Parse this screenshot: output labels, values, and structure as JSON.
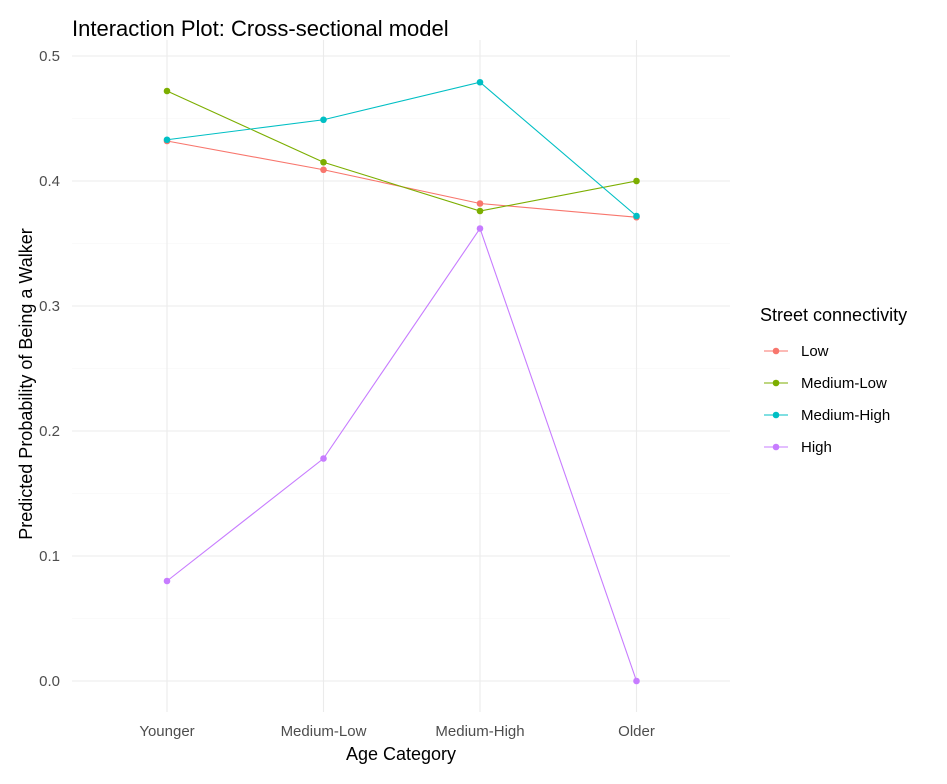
{
  "chart_data": {
    "type": "line",
    "title": "Interaction Plot: Cross-sectional model",
    "xlabel": "Age Category",
    "ylabel": "Predicted Probability of Being a Walker",
    "categories": [
      "Younger",
      "Medium-Low",
      "Medium-High",
      "Older"
    ],
    "ylim": [
      -0.025,
      0.5
    ],
    "yticks": [
      0.0,
      0.1,
      0.2,
      0.3,
      0.4,
      0.5
    ],
    "ytick_labels": [
      "0.0",
      "0.1",
      "0.2",
      "0.3",
      "0.4",
      "0.5"
    ],
    "grid": true,
    "legend": {
      "title": "Street connectivity",
      "position": "right"
    },
    "series": [
      {
        "name": "Low",
        "color": "#F8766D",
        "values": [
          0.432,
          0.409,
          0.382,
          0.371
        ]
      },
      {
        "name": "Medium-Low",
        "color": "#7CAE00",
        "values": [
          0.472,
          0.415,
          0.376,
          0.4
        ]
      },
      {
        "name": "Medium-High",
        "color": "#00BFC4",
        "values": [
          0.433,
          0.449,
          0.479,
          0.372
        ]
      },
      {
        "name": "High",
        "color": "#C77CFF",
        "values": [
          0.08,
          0.178,
          0.362,
          0.0
        ]
      }
    ]
  }
}
